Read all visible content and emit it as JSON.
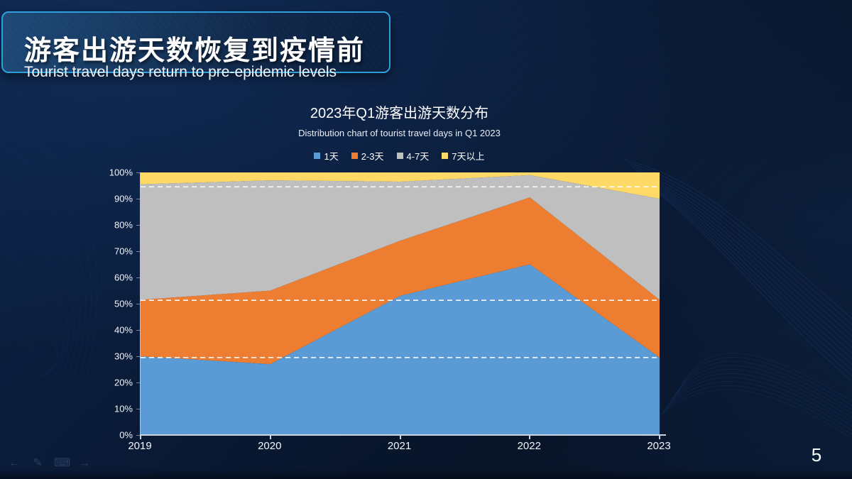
{
  "header": {
    "title_cn": "游客出游天数恢复到疫情前",
    "title_en": "Tourist travel days return to pre-epidemic levels"
  },
  "chart": {
    "title": "2023年Q1游客出游天数分布",
    "subtitle": "Distribution chart of tourist travel days in Q1 2023"
  },
  "chart_data": {
    "type": "area",
    "stacked": true,
    "unit": "percent",
    "title": "2023年Q1游客出游天数分布",
    "subtitle": "Distribution chart of tourist travel days in Q1 2023",
    "categories": [
      "2019",
      "2020",
      "2021",
      "2022",
      "2023"
    ],
    "series": [
      {
        "name": "1天",
        "color": "#5B9BD5",
        "values": [
          30,
          27,
          53,
          65,
          29.5
        ]
      },
      {
        "name": "2-3天",
        "color": "#ED7D31",
        "values": [
          21.5,
          28,
          21,
          25.5,
          22
        ]
      },
      {
        "name": "4-7天",
        "color": "#BFBFBF",
        "values": [
          44,
          42,
          22.5,
          8.5,
          38.5
        ]
      },
      {
        "name": "7天以上",
        "color": "#FFD966",
        "values": [
          4.5,
          3,
          3.5,
          1,
          10
        ]
      }
    ],
    "y_ticks": [
      {
        "value": 0,
        "label": "0%"
      },
      {
        "value": 10,
        "label": "10%"
      },
      {
        "value": 20,
        "label": "20%"
      },
      {
        "value": 30,
        "label": "30%"
      },
      {
        "value": 40,
        "label": "40%"
      },
      {
        "value": 50,
        "label": "50%"
      },
      {
        "value": 60,
        "label": "60%"
      },
      {
        "value": 70,
        "label": "70%"
      },
      {
        "value": 80,
        "label": "80%"
      },
      {
        "value": 90,
        "label": "90%"
      },
      {
        "value": 100,
        "label": "100%"
      }
    ],
    "ylim": [
      0,
      100
    ],
    "grid": false,
    "legend_position": "top",
    "reference_lines": {
      "style": "dashed",
      "color": "#FFFFFF",
      "values": [
        94.5,
        51.3,
        29.5
      ]
    }
  },
  "footer": {
    "page_number": "5"
  },
  "presenter_toolbar": {
    "icons": [
      {
        "name": "previous-slide-icon",
        "glyph": "←"
      },
      {
        "name": "pen-icon",
        "glyph": "✎"
      },
      {
        "name": "slideshow-menu-icon",
        "glyph": "⌨"
      },
      {
        "name": "next-slide-icon",
        "glyph": "→"
      }
    ]
  },
  "colors": {
    "background": "#0A1A36",
    "title_box_border": "#2F9FDC",
    "axis": "#D2D8E2",
    "text": "#FFFFFF"
  }
}
